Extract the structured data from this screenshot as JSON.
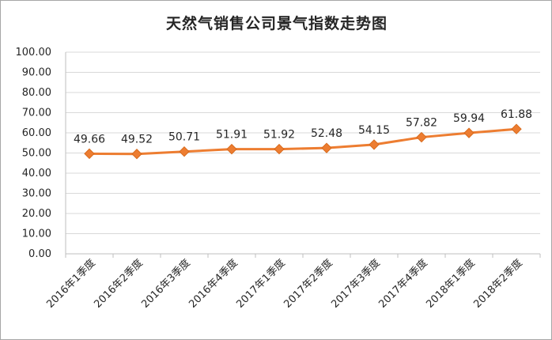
{
  "chart_data": {
    "type": "line",
    "title": "天然气销售公司景气指数走势图",
    "xlabel": "",
    "ylabel": "",
    "categories": [
      "2016年1季度",
      "2016年2季度",
      "2016年3季度",
      "2016年4季度",
      "2017年1季度",
      "2017年2季度",
      "2017年3季度",
      "2017年4季度",
      "2018年1季度",
      "2018年2季度"
    ],
    "series": [
      {
        "values": [
          49.66,
          49.52,
          50.71,
          51.91,
          51.92,
          52.48,
          54.15,
          57.82,
          59.94,
          61.88
        ]
      }
    ],
    "data_labels": [
      "49.66",
      "49.52",
      "50.71",
      "51.91",
      "51.92",
      "52.48",
      "54.15",
      "57.82",
      "59.94",
      "61.88"
    ],
    "ylim": [
      0,
      100
    ],
    "yticks": [
      "0.00",
      "10.00",
      "20.00",
      "30.00",
      "40.00",
      "50.00",
      "60.00",
      "70.00",
      "80.00",
      "90.00",
      "100.00"
    ],
    "grid": true,
    "legend": "none",
    "colors": {
      "line": "#ed7d31",
      "marker": "#ed7d31",
      "grid": "#d9d9d9",
      "text": "#262626"
    },
    "marker": "diamond"
  }
}
